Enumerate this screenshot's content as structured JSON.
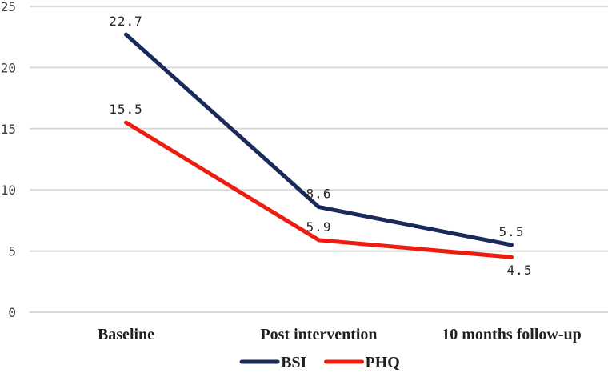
{
  "figure": {
    "background": "#ffffff"
  },
  "chart_data": {
    "type": "line",
    "title": "",
    "xlabel": "",
    "ylabel": "",
    "categories": [
      "Baseline",
      "Post intervention",
      "10 months follow-up"
    ],
    "series": [
      {
        "name": "BSI",
        "color": "#1a2a5a",
        "values": [
          22.7,
          8.6,
          5.5
        ],
        "data_labels": [
          "22.7",
          "8.6",
          "5.5"
        ],
        "label_placement": [
          "above",
          "above",
          "above"
        ]
      },
      {
        "name": "PHQ",
        "color": "#ec1c10",
        "values": [
          15.5,
          5.9,
          4.5
        ],
        "data_labels": [
          "15.5",
          "5.9",
          "4.5"
        ],
        "label_placement": [
          "above",
          "above",
          "below"
        ]
      }
    ],
    "ylim": [
      0,
      25
    ],
    "yticks": [
      0,
      5,
      10,
      15,
      20,
      25
    ],
    "ytick_labels": [
      "0",
      "5",
      "10",
      "15",
      "20",
      "25"
    ],
    "grid": "horizontal",
    "gridline_color": "#d6dbda",
    "tick_label_color": "#404040",
    "data_label_color": "#262626",
    "category_label_color": "#1f1f1f",
    "legend": {
      "position": "bottom-center",
      "entries": [
        "BSI",
        "PHQ"
      ]
    }
  }
}
